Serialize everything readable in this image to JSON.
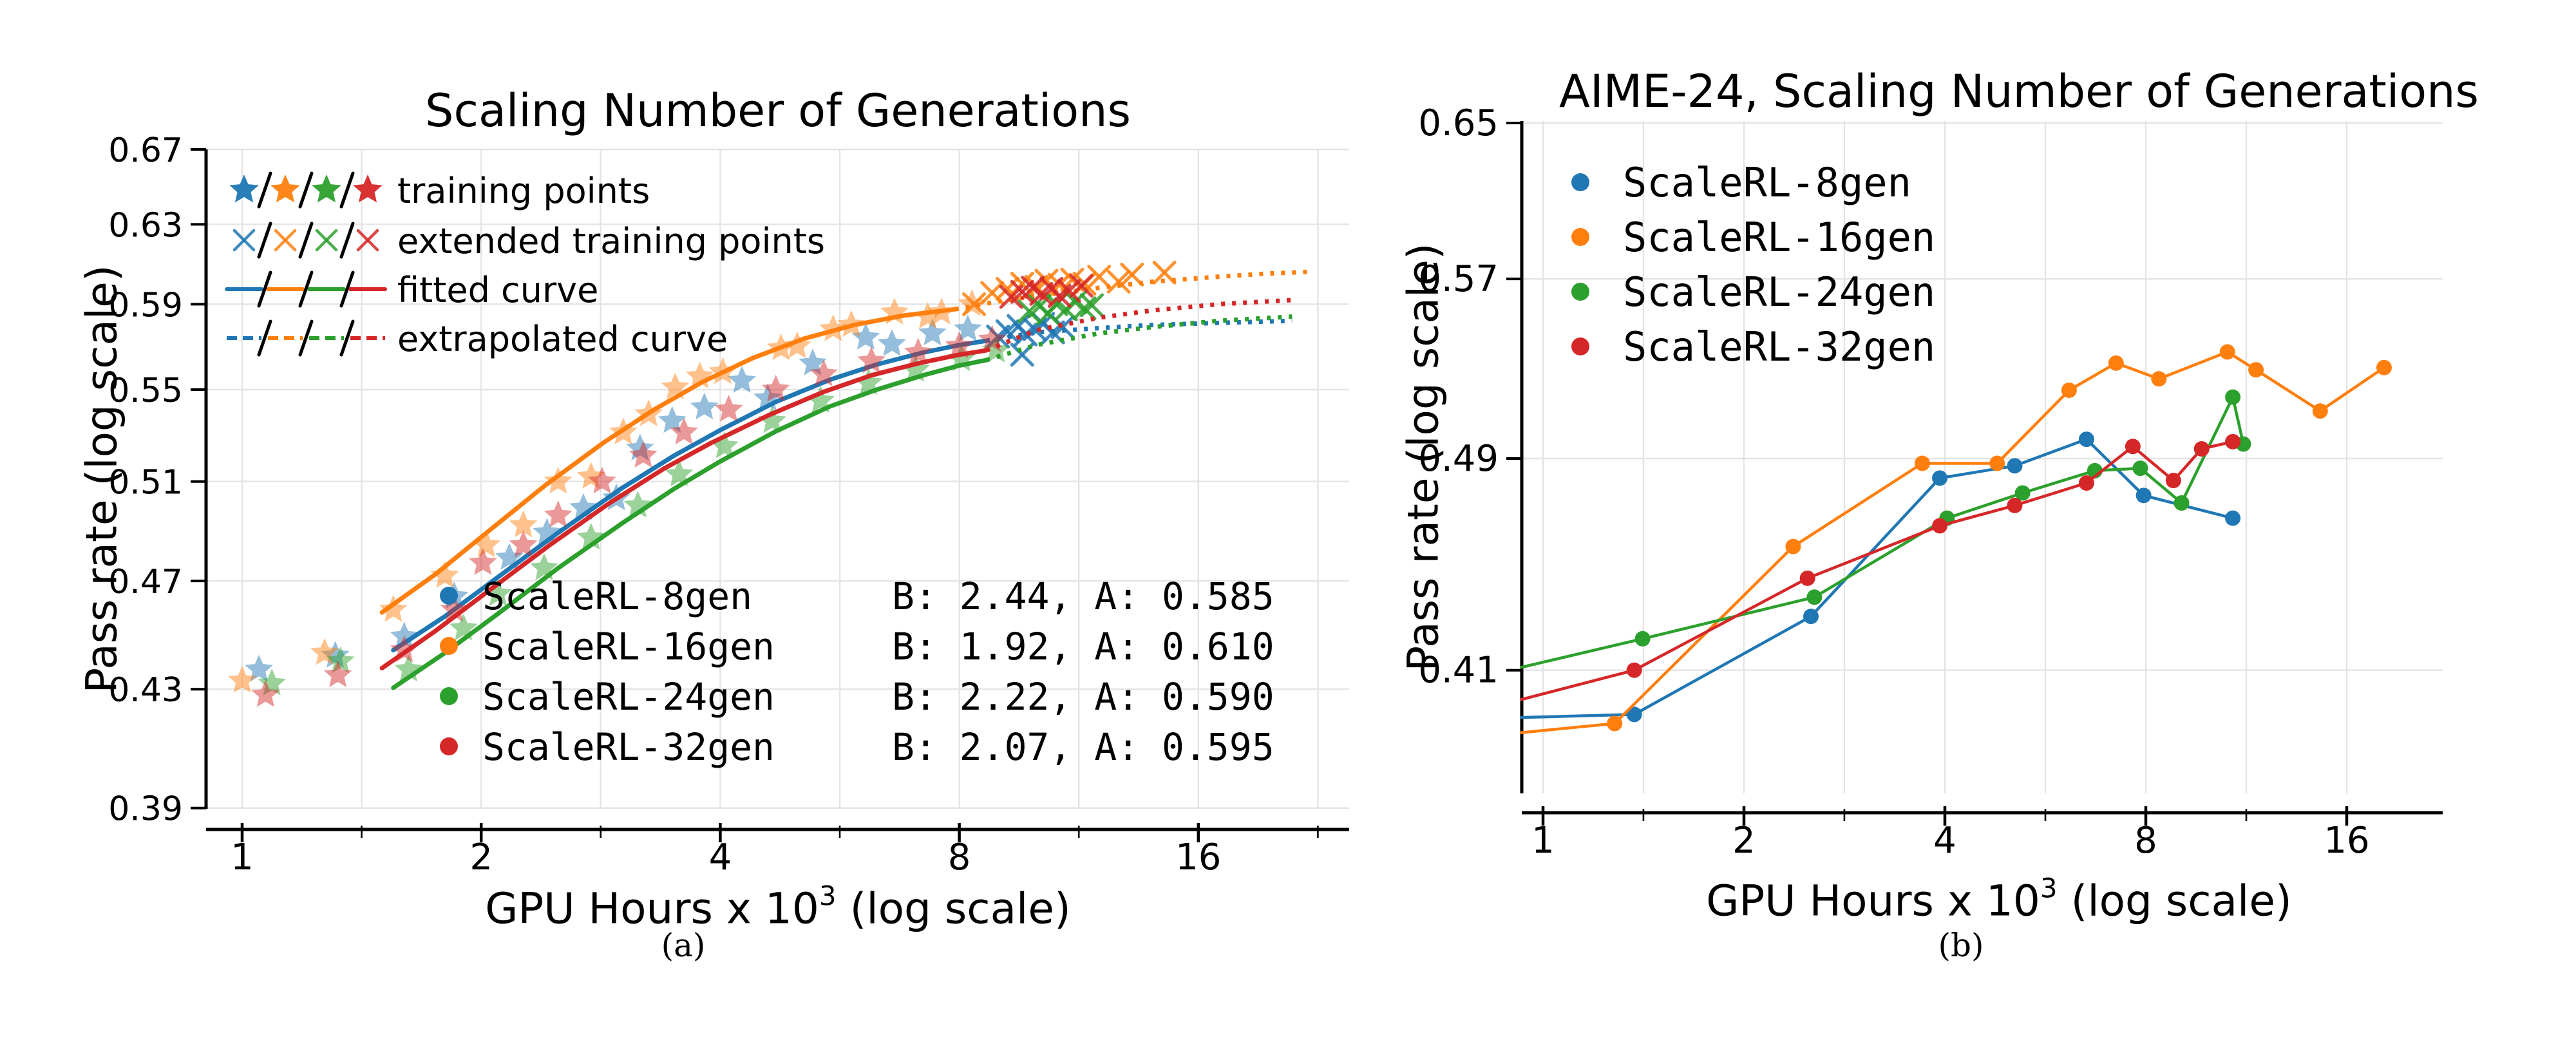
{
  "figure": {
    "captions": {
      "a": "(a)",
      "b": "(b)"
    }
  },
  "colors": {
    "blue": "#1f77b4",
    "orange": "#ff7f0e",
    "green": "#2ca02c",
    "red": "#d62728",
    "grid": "#e4e4e4",
    "axis": "#000000"
  },
  "chart_data": [
    {
      "id": "a",
      "type": "scatter+line",
      "title": "Scaling Number of Generations",
      "xlabel": "GPU Hours x 10^3 (log scale)",
      "xlabel_parts": {
        "prefix": "GPU Hours x 10",
        "sup": "3",
        "suffix": " (log scale)"
      },
      "ylabel": "Pass rate (log scale)",
      "x_scale": "log2",
      "y_scale": "log",
      "xlim": [
        0.9,
        24.8
      ],
      "ylim": [
        0.39,
        0.67
      ],
      "x_ticks": [
        1,
        2,
        4,
        8,
        16
      ],
      "x_minor_ticks": [
        1.414,
        2.828,
        5.657,
        11.314,
        22.627
      ],
      "y_ticks": [
        0.67,
        0.63,
        0.59,
        0.55,
        0.51,
        0.47,
        0.43,
        0.39
      ],
      "grid": true,
      "legend_position": "upper-left",
      "marker_legend": [
        {
          "type": "star",
          "label": "training points"
        },
        {
          "type": "x",
          "label": "extended training points"
        },
        {
          "type": "solid",
          "label": "fitted curve"
        },
        {
          "type": "dashed",
          "label": "extrapolated curve"
        }
      ],
      "series": [
        {
          "name": "ScaleRL-8gen",
          "color_key": "blue",
          "B": 2.44,
          "A": 0.585,
          "fit_text": "B: 2.44, A: 0.585",
          "training_points": {
            "x": [
              1.05,
              1.31,
              1.6,
              1.85,
              2.17,
              2.42,
              2.69,
              2.96,
              3.17,
              3.48,
              3.82,
              4.26,
              4.59,
              5.23,
              6.1,
              6.58,
              7.4,
              8.2
            ],
            "y": [
              0.437,
              0.442,
              0.449,
              0.464,
              0.479,
              0.489,
              0.499,
              0.503,
              0.524,
              0.536,
              0.542,
              0.554,
              0.546,
              0.562,
              0.574,
              0.571,
              0.576,
              0.578
            ]
          },
          "extended_points": {
            "x": [
              8.95,
              9.2,
              9.5,
              9.6,
              9.7,
              9.95,
              10.2,
              10.5,
              10.8
            ],
            "y": [
              0.5745,
              0.577,
              0.5795,
              0.566,
              0.5755,
              0.578,
              0.5805,
              0.5765,
              0.579
            ]
          },
          "fitted_curve": {
            "x": [
              1.55,
              1.8,
              2.1,
              2.5,
              3.0,
              3.5,
              4.0,
              4.7,
              5.5,
              6.3,
              7.2,
              8.0,
              8.65
            ],
            "y": [
              0.444,
              0.4565,
              0.4715,
              0.489,
              0.507,
              0.521,
              0.532,
              0.5445,
              0.5545,
              0.5615,
              0.567,
              0.5705,
              0.5725
            ]
          },
          "extrapolated_curve": {
            "x": [
              8.65,
              10,
              12,
              14,
              17,
              21
            ],
            "y": [
              0.5725,
              0.5765,
              0.5785,
              0.58,
              0.581,
              0.582
            ]
          }
        },
        {
          "name": "ScaleRL-16gen",
          "color_key": "orange",
          "B": 1.92,
          "A": 0.61,
          "fit_text": "B: 1.92, A: 0.610",
          "training_points": {
            "x": [
              1.0,
              1.27,
              1.55,
              1.8,
              2.03,
              2.26,
              2.5,
              2.75,
              3.02,
              3.25,
              3.51,
              3.77,
              4.03,
              4.77,
              5.0,
              5.55,
              5.85,
              6.63,
              7.3,
              7.6,
              8.3
            ],
            "y": [
              0.433,
              0.443,
              0.459,
              0.472,
              0.484,
              0.492,
              0.51,
              0.512,
              0.531,
              0.539,
              0.551,
              0.556,
              0.558,
              0.569,
              0.57,
              0.578,
              0.58,
              0.586,
              0.584,
              0.586,
              0.59
            ]
          },
          "extended_points": {
            "x": [
              8.35,
              8.8,
              9.2,
              9.6,
              10.0,
              10.3,
              10.7,
              11.1,
              11.5,
              12.0,
              12.7,
              13.2,
              14.5
            ],
            "y": [
              0.59,
              0.5955,
              0.5975,
              0.6,
              0.5985,
              0.6015,
              0.5995,
              0.602,
              0.6,
              0.6035,
              0.601,
              0.6045,
              0.6055
            ]
          },
          "fitted_curve": {
            "x": [
              1.5,
              1.75,
              2.05,
              2.4,
              2.85,
              3.3,
              3.8,
              4.4,
              5.1,
              5.9,
              6.8,
              7.9
            ],
            "y": [
              0.458,
              0.4725,
              0.49,
              0.508,
              0.5265,
              0.541,
              0.5535,
              0.5645,
              0.5735,
              0.58,
              0.5845,
              0.5875
            ]
          },
          "extrapolated_curve": {
            "x": [
              7.9,
              9,
              10,
              12,
              14,
              17,
              19.5,
              22.3
            ],
            "y": [
              0.5875,
              0.5915,
              0.594,
              0.598,
              0.601,
              0.6035,
              0.605,
              0.606
            ]
          }
        },
        {
          "name": "ScaleRL-24gen",
          "color_key": "green",
          "B": 2.22,
          "A": 0.59,
          "fit_text": "B: 2.22, A: 0.590",
          "training_points": {
            "x": [
              1.09,
              1.33,
              1.62,
              1.9,
              2.1,
              2.4,
              2.75,
              3.15,
              3.55,
              4.05,
              4.65,
              5.35,
              6.15,
              7.05,
              8.05,
              8.9
            ],
            "y": [
              0.432,
              0.44,
              0.437,
              0.452,
              0.465,
              0.475,
              0.487,
              0.5,
              0.513,
              0.525,
              0.536,
              0.545,
              0.553,
              0.559,
              0.564,
              0.568
            ]
          },
          "extended_points": {
            "x": [
              9.8,
              10.1,
              10.35,
              10.6,
              10.9,
              11.2,
              11.5,
              11.75
            ],
            "y": [
              0.5865,
              0.589,
              0.5855,
              0.59,
              0.5875,
              0.591,
              0.588,
              0.5895
            ]
          },
          "fitted_curve": {
            "x": [
              1.55,
              1.8,
              2.1,
              2.5,
              3.0,
              3.5,
              4.0,
              4.7,
              5.5,
              6.3,
              7.2,
              8.0,
              8.65
            ],
            "y": [
              0.4305,
              0.443,
              0.4575,
              0.475,
              0.4925,
              0.507,
              0.5185,
              0.5315,
              0.5425,
              0.55,
              0.5565,
              0.561,
              0.5635
            ]
          },
          "extrapolated_curve": {
            "x": [
              8.65,
              10,
              12,
              14,
              17,
              21
            ],
            "y": [
              0.5635,
              0.5705,
              0.576,
              0.579,
              0.582,
              0.584
            ]
          }
        },
        {
          "name": "ScaleRL-32gen",
          "color_key": "red",
          "B": 2.07,
          "A": 0.595,
          "fit_text": "B: 2.07, A: 0.595",
          "training_points": {
            "x": [
              1.07,
              1.32,
              1.6,
              1.85,
              2.01,
              2.26,
              2.5,
              2.84,
              3.2,
              3.6,
              4.1,
              4.7,
              5.4,
              6.2,
              7.1,
              8.0,
              8.8
            ],
            "y": [
              0.428,
              0.435,
              0.444,
              0.459,
              0.477,
              0.484,
              0.496,
              0.51,
              0.521,
              0.531,
              0.541,
              0.55,
              0.557,
              0.563,
              0.567,
              0.57,
              0.573
            ]
          },
          "extended_points": {
            "x": [
              9.3,
              9.6,
              9.9,
              10.15,
              10.45,
              10.7,
              11.0,
              11.4
            ],
            "y": [
              0.5935,
              0.596,
              0.598,
              0.595,
              0.5975,
              0.594,
              0.5965,
              0.599
            ]
          },
          "fitted_curve": {
            "x": [
              1.5,
              1.75,
              2.05,
              2.45,
              2.9,
              3.4,
              3.9,
              4.6,
              5.4,
              6.2,
              7.1,
              8.0,
              8.65
            ],
            "y": [
              0.4375,
              0.451,
              0.4665,
              0.4845,
              0.501,
              0.5155,
              0.5265,
              0.5385,
              0.549,
              0.5565,
              0.562,
              0.566,
              0.568
            ]
          },
          "extrapolated_curve": {
            "x": [
              8.65,
              10,
              12,
              14,
              17,
              21
            ],
            "y": [
              0.568,
              0.5775,
              0.5835,
              0.587,
              0.59,
              0.592
            ]
          }
        }
      ]
    },
    {
      "id": "b",
      "type": "line",
      "title": "AIME-24, Scaling Number of Generations",
      "xlabel": "GPU Hours x 10^3 (log scale)",
      "xlabel_parts": {
        "prefix": "GPU Hours x 10",
        "sup": "3",
        "suffix": " (log scale)"
      },
      "ylabel": "Pass rate (log scale)",
      "x_scale": "log2",
      "y_scale": "log",
      "xlim": [
        0.93,
        22.3
      ],
      "ylim": [
        0.37,
        0.652
      ],
      "x_ticks": [
        1,
        2,
        4,
        8,
        16
      ],
      "x_minor_ticks": [
        1.414,
        2.828,
        5.657,
        11.314
      ],
      "y_ticks": [
        0.65,
        0.57,
        0.49,
        0.41
      ],
      "grid": true,
      "legend_position": "upper-left",
      "series": [
        {
          "name": "ScaleRL-8gen",
          "color_key": "blue",
          "x": [
            0.928,
            1.37,
            2.52,
            3.93,
            5.09,
            6.52,
            7.94,
            10.8
          ],
          "y": [
            0.394,
            0.395,
            0.429,
            0.482,
            0.487,
            0.498,
            0.475,
            0.466
          ]
        },
        {
          "name": "ScaleRL-16gen",
          "color_key": "orange",
          "x": [
            0.928,
            1.28,
            2.37,
            3.7,
            4.79,
            6.14,
            7.22,
            8.37,
            10.6,
            11.7,
            14.6,
            18.2
          ],
          "y": [
            0.389,
            0.392,
            0.455,
            0.488,
            0.488,
            0.519,
            0.531,
            0.524,
            0.536,
            0.528,
            0.51,
            0.529
          ]
        },
        {
          "name": "ScaleRL-24gen",
          "color_key": "green",
          "x": [
            0.928,
            1.41,
            2.55,
            4.03,
            5.23,
            6.71,
            7.85,
            9.05,
            10.8,
            11.2
          ],
          "y": [
            0.411,
            0.421,
            0.436,
            0.466,
            0.476,
            0.485,
            0.486,
            0.472,
            0.516,
            0.496
          ]
        },
        {
          "name": "ScaleRL-32gen",
          "color_key": "red",
          "x": [
            0.928,
            1.37,
            2.49,
            3.93,
            5.09,
            6.52,
            7.65,
            8.8,
            9.7,
            10.8
          ],
          "y": [
            0.4,
            0.41,
            0.443,
            0.463,
            0.471,
            0.48,
            0.495,
            0.481,
            0.494,
            0.497
          ]
        }
      ]
    }
  ]
}
